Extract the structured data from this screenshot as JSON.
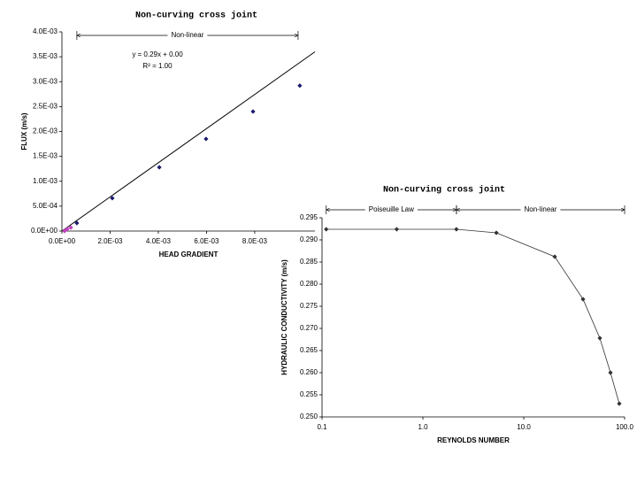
{
  "chart_data": [
    {
      "type": "scatter",
      "title": "Non-curving cross joint",
      "x_label": "HEAD GRADIENT",
      "y_label": "FLUX (m/s)",
      "series": [
        {
          "color": "#1a1a6e",
          "x": [
            0.00062,
            0.00209,
            0.00404,
            0.00598,
            0.00793,
            0.00987
          ],
          "values": [
            0.00016,
            0.00066,
            0.00128,
            0.00185,
            0.0024,
            0.00292
          ]
        },
        {
          "color": "#c040c0",
          "x": [
            0.00011,
            0.00022,
            0.00037
          ],
          "values": [
            0.0,
            4e-05,
            7e-05
          ]
        }
      ],
      "trendline": {
        "color": "#000000",
        "x": [
          0,
          0.0105
        ],
        "values": [
          0,
          0.0036
        ]
      },
      "annotations": [
        {
          "text": "Non-linear",
          "span": [
            0.00062,
            0.0098
          ]
        },
        {
          "text": "y = 0.29x + 0.00"
        },
        {
          "text": "R² = 1.00"
        }
      ],
      "xlim": [
        0,
        0.0105
      ],
      "xticks": [
        {
          "value": 0,
          "label": "0.0E+00"
        },
        {
          "value": 0.002,
          "label": "2.0E-03"
        },
        {
          "value": 0.004,
          "label": "4.0E-03"
        },
        {
          "value": 0.006,
          "label": "6.0E-03"
        },
        {
          "value": 0.008,
          "label": "8.0E-03"
        }
      ],
      "ylim": [
        0,
        0.004
      ],
      "yticks": [
        {
          "value": 0,
          "label": "0.0E+00"
        },
        {
          "value": 0.0005,
          "label": "5.0E-04"
        },
        {
          "value": 0.001,
          "label": "1.0E-03"
        },
        {
          "value": 0.0015,
          "label": "1.5E-03"
        },
        {
          "value": 0.002,
          "label": "2.0E-03"
        },
        {
          "value": 0.0025,
          "label": "2.5E-03"
        },
        {
          "value": 0.003,
          "label": "3.0E-03"
        },
        {
          "value": 0.0035,
          "label": "3.5E-03"
        },
        {
          "value": 0.004,
          "label": "4.0E-03"
        }
      ]
    },
    {
      "type": "line",
      "title": "Non-curving cross joint",
      "x_label": "REYNOLDS NUMBER",
      "y_label": "HYDRAULIC CONDUCTIVITY (m/s)",
      "x_scale": "log",
      "series": [
        {
          "color": "#333333",
          "x": [
            0.11,
            0.55,
            2.15,
            5.35,
            20.3,
            38.7,
            56.8,
            72.4,
            88.5
          ],
          "values": [
            0.2924,
            0.2924,
            0.2924,
            0.2916,
            0.2862,
            0.2766,
            0.2678,
            0.26,
            0.253
          ]
        }
      ],
      "annotations": [
        {
          "text": "Poiseuille Law",
          "span": [
            0.11,
            2.15
          ]
        },
        {
          "text": "Non-linear",
          "span": [
            2.15,
            100
          ]
        }
      ],
      "xlim": [
        0.1,
        100
      ],
      "xticks": [
        {
          "value": 0.1,
          "label": "0.1"
        },
        {
          "value": 1,
          "label": "1.0"
        },
        {
          "value": 10,
          "label": "10.0"
        },
        {
          "value": 100,
          "label": "100.0"
        }
      ],
      "ylim": [
        0.25,
        0.295
      ],
      "yticks": [
        {
          "value": 0.25,
          "label": "0.250"
        },
        {
          "value": 0.255,
          "label": "0.255"
        },
        {
          "value": 0.26,
          "label": "0.260"
        },
        {
          "value": 0.265,
          "label": "0.265"
        },
        {
          "value": 0.27,
          "label": "0.270"
        },
        {
          "value": 0.275,
          "label": "0.275"
        },
        {
          "value": 0.28,
          "label": "0.280"
        },
        {
          "value": 0.285,
          "label": "0.285"
        },
        {
          "value": 0.29,
          "label": "0.290"
        },
        {
          "value": 0.295,
          "label": "0.295"
        }
      ]
    }
  ]
}
